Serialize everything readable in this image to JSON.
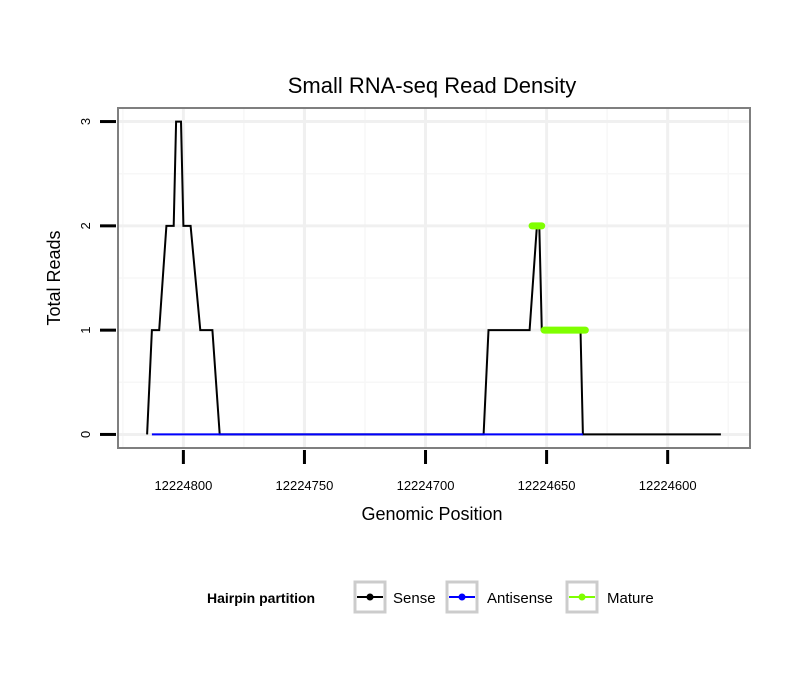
{
  "chart_data": {
    "type": "line",
    "title": "Small RNA-seq Read Density",
    "xlabel": "Genomic Position",
    "ylabel": "Total Reads",
    "x_reversed": true,
    "xlim": [
      12224827,
      12224566
    ],
    "ylim": [
      -0.13,
      3.13
    ],
    "x_ticks": [
      12224800,
      12224750,
      12224700,
      12224650,
      12224600
    ],
    "x_tick_labels": [
      "12224800",
      "12224750",
      "12224700",
      "12224650",
      "12224600"
    ],
    "y_ticks": [
      0,
      1,
      2,
      3
    ],
    "y_tick_labels": [
      "0",
      "1",
      "2",
      "3"
    ],
    "grid": true,
    "legend": {
      "title": "Hairpin partition",
      "position": "bottom",
      "entries": [
        {
          "name": "Sense",
          "color": "#000000"
        },
        {
          "name": "Antisense",
          "color": "#0000ff"
        },
        {
          "name": "Mature",
          "color": "#7fff00"
        }
      ]
    },
    "series": [
      {
        "name": "Sense",
        "color": "#000000",
        "step": true,
        "x": [
          12224815,
          12224813,
          12224810,
          12224807,
          12224804,
          12224803,
          12224801,
          12224800,
          12224797,
          12224793,
          12224788,
          12224785,
          12224774,
          12224772,
          12224676,
          12224674,
          12224657,
          12224654,
          12224653,
          12224652,
          12224636,
          12224635,
          12224578
        ],
        "y": [
          0,
          1,
          1,
          2,
          2,
          3,
          3,
          2,
          2,
          1,
          1,
          0,
          0,
          0,
          0,
          1,
          1,
          2,
          2,
          1,
          1,
          0,
          0
        ]
      },
      {
        "name": "Antisense",
        "color": "#0000ff",
        "x": [
          12224813,
          12224772,
          12224674,
          12224635
        ],
        "y": [
          0,
          0,
          0,
          0
        ]
      },
      {
        "name": "Mature",
        "color": "#7fff00",
        "segments": [
          {
            "x": [
              12224656,
              12224652
            ],
            "y": [
              2,
              2
            ]
          },
          {
            "x": [
              12224651,
              12224634
            ],
            "y": [
              1,
              1
            ]
          }
        ]
      }
    ]
  }
}
